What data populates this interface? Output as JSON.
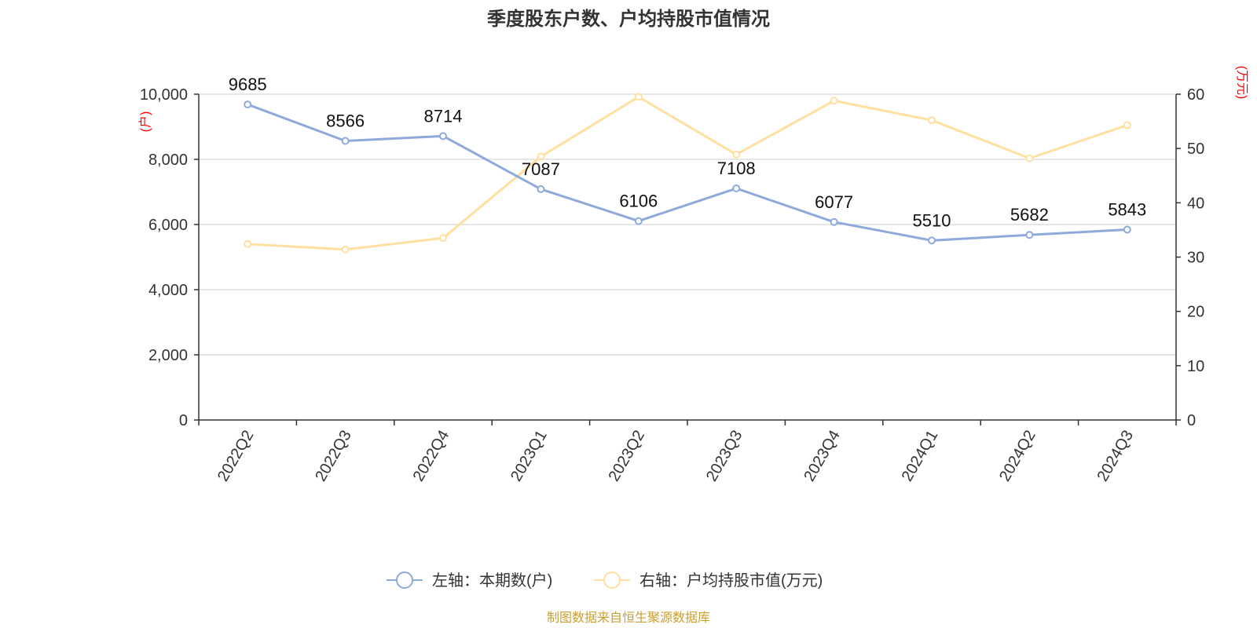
{
  "chart_data": {
    "type": "line",
    "title": "季度股东户数、户均持股市值情况",
    "categories": [
      "2022Q2",
      "2022Q3",
      "2022Q4",
      "2023Q1",
      "2023Q2",
      "2023Q3",
      "2023Q4",
      "2024Q1",
      "2024Q2",
      "2024Q3"
    ],
    "y_left": {
      "unit": "(户)",
      "ylim": [
        0,
        10000
      ],
      "ticks": [
        "0",
        "2,000",
        "4,000",
        "6,000",
        "8,000",
        "10,000"
      ],
      "tick_values": [
        0,
        2000,
        4000,
        6000,
        8000,
        10000
      ]
    },
    "y_right": {
      "unit": "(万元)",
      "ylim": [
        0,
        60
      ],
      "ticks": [
        "0",
        "10",
        "20",
        "30",
        "40",
        "50",
        "60"
      ],
      "tick_values": [
        0,
        10,
        20,
        30,
        40,
        50,
        60
      ]
    },
    "series": [
      {
        "name": "左轴：本期数(户)",
        "axis": "left",
        "color": "#8eaadb",
        "values": [
          9685,
          8566,
          8714,
          7087,
          6106,
          7108,
          6077,
          5510,
          5682,
          5843
        ],
        "labels": [
          "9685",
          "8566",
          "8714",
          "7087",
          "6106",
          "7108",
          "6077",
          "5510",
          "5682",
          "5843"
        ]
      },
      {
        "name": "右轴：户均持股市值(万元)",
        "axis": "right",
        "color": "#ffe0a0",
        "values": [
          32.4,
          31.4,
          33.5,
          48.5,
          59.5,
          48.9,
          58.8,
          55.2,
          48.2,
          54.3
        ]
      }
    ],
    "grid": true,
    "legend_position": "bottom"
  },
  "source_text": "制图数据来自恒生聚源数据库"
}
